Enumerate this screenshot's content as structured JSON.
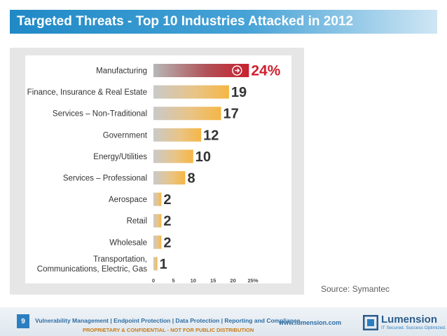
{
  "title": "Targeted Threats - Top 10 Industries Attacked in 2012",
  "source": "Source: Symantec",
  "footer": {
    "page_number": "9",
    "tagline": "Vulnerability Management | Endpoint Protection | Data Protection | Reporting and Compliance",
    "confidential": "PROPRIETARY & CONFIDENTIAL - NOT FOR PUBLIC DISTRIBUTION",
    "url": "www.lumension.com",
    "logo_name": "Lumension",
    "logo_tagline": "IT Secured. Success Optimized."
  },
  "colors": {
    "title_bar": "#1f89c6",
    "top_bar": "#c8202f",
    "bars": "#f2b94a",
    "top_label": "#d0202f",
    "labels": "#333333"
  },
  "chart_data": {
    "type": "bar",
    "orientation": "horizontal",
    "categories": [
      "Manufacturing",
      "Finance, Insurance & Real Estate",
      "Services – Non-Traditional",
      "Government",
      "Energy/Utilities",
      "Services – Professional",
      "Aerospace",
      "Retail",
      "Wholesale",
      [
        "Transportation,",
        "Communications, Electric, Gas"
      ]
    ],
    "values": [
      24,
      19,
      17,
      12,
      10,
      8,
      2,
      2,
      2,
      1
    ],
    "data_labels": [
      "24%",
      "19",
      "17",
      "12",
      "10",
      "8",
      "2",
      "2",
      "2",
      "1"
    ],
    "x_ticks": [
      "0",
      "5",
      "10",
      "15",
      "20",
      "25%"
    ],
    "xlim": [
      0,
      25
    ],
    "grid": false,
    "legend": "none"
  }
}
